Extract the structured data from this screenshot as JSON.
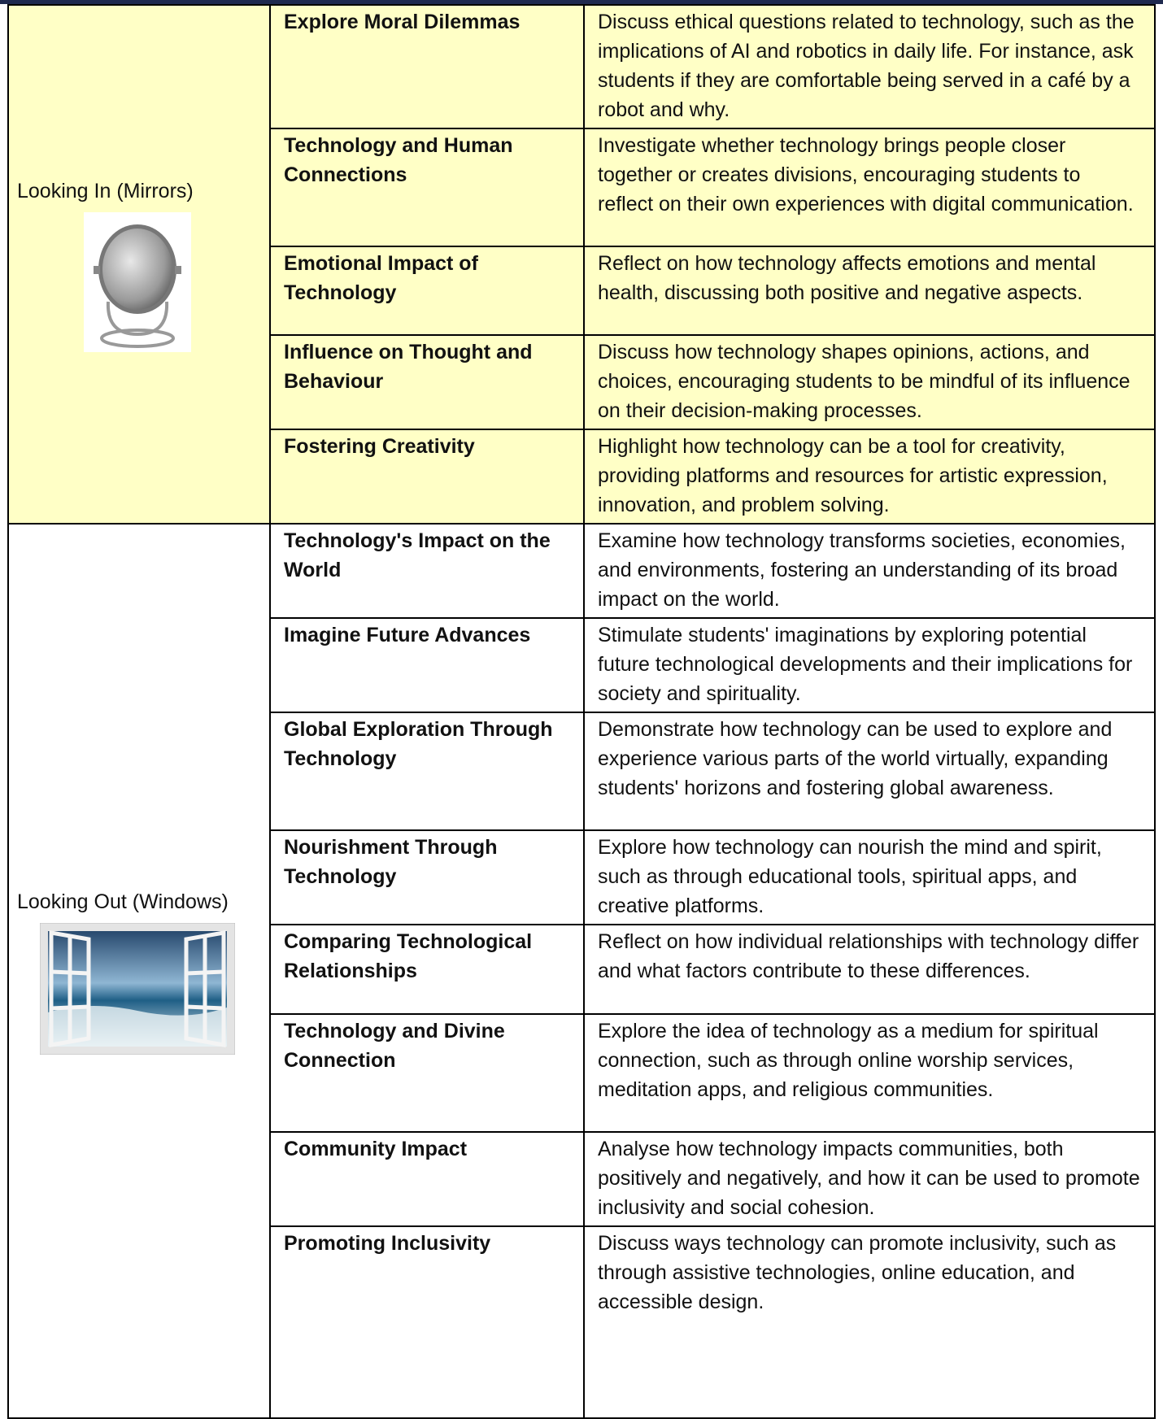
{
  "sections": [
    {
      "label": "Looking In (Mirrors)",
      "rows": [
        {
          "topic": "Explore Moral Dilemmas",
          "description": "Discuss ethical questions related to technology, such as the implications of AI and robotics in daily life. For instance, ask students if they are comfortable being served in a café by a robot and why."
        },
        {
          "topic": "Technology and Human Connections",
          "description": "Investigate whether technology brings people closer together or creates divisions, encouraging students to reflect on their own experiences with digital communication."
        },
        {
          "topic": "Emotional Impact of Technology",
          "description": "Reflect on how technology affects emotions and mental health, discussing both positive and negative aspects."
        },
        {
          "topic": "Influence on Thought and Behaviour",
          "description": "Discuss how technology shapes opinions, actions, and choices, encouraging students to be mindful of its influence on their decision-making processes."
        },
        {
          "topic": "Fostering Creativity",
          "description": "Highlight how technology can be a tool for creativity, providing platforms and resources for artistic expression, innovation, and problem solving."
        }
      ]
    },
    {
      "label": "Looking Out (Windows)",
      "rows": [
        {
          "topic": "Technology's Impact on the World",
          "description": "Examine how technology transforms societies, economies, and environments, fostering an understanding of its broad impact on the world."
        },
        {
          "topic": "Imagine Future Advances",
          "description": "Stimulate students' imaginations by exploring potential future technological developments and their implications for society and spirituality."
        },
        {
          "topic": "Global Exploration Through Technology",
          "description": "Demonstrate how technology can be used to explore and experience various parts of the world virtually, expanding students' horizons and fostering global awareness."
        },
        {
          "topic": "Nourishment Through Technology",
          "description": "Explore how technology can nourish the mind and spirit, such as through educational tools, spiritual apps, and creative platforms."
        },
        {
          "topic": "Comparing Technological Relationships",
          "description": "Reflect on how individual relationships with technology differ and what factors contribute to these differences."
        },
        {
          "topic": "Technology and Divine Connection",
          "description": "Explore the idea of technology as a medium for spiritual connection, such as through online worship services, meditation apps, and religious communities."
        },
        {
          "topic": "Community Impact",
          "description": "Analyse how technology impacts communities, both positively and negatively, and how it can be used to promote inclusivity and social cohesion."
        },
        {
          "topic": "Promoting Inclusivity",
          "description": "Discuss ways technology can promote inclusivity, such as through assistive technologies, online education, and accessible design."
        }
      ]
    }
  ]
}
